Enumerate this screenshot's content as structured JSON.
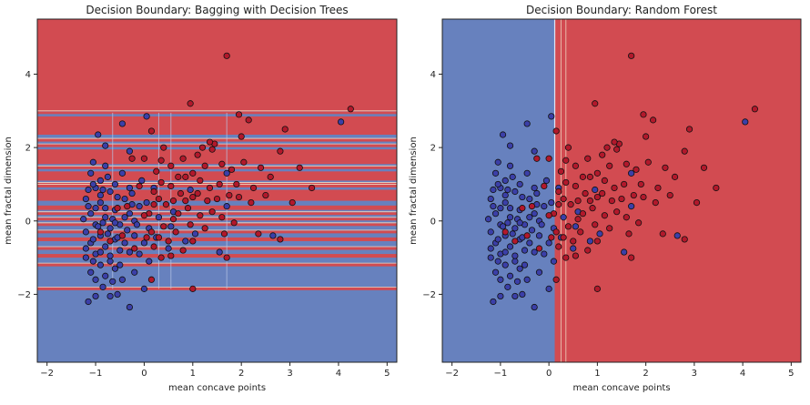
{
  "chart_data": [
    {
      "type": "scatter",
      "title": "Decision Boundary: Bagging with Decision Trees",
      "xlabel": "mean concave points",
      "ylabel": "mean fractal dimension",
      "xlim": [
        -2.2,
        5.2
      ],
      "ylim": [
        -3.85,
        5.5
      ],
      "xticks": [
        -2,
        -1,
        0,
        1,
        2,
        3,
        4,
        5
      ],
      "yticks": [
        -2,
        0,
        2,
        4
      ],
      "background_classes": [
        "red region",
        "blue region"
      ],
      "boundary": {
        "default_region": "blue",
        "red_regions": [
          {
            "axis": "y",
            "from": 3.0,
            "to": 5.5
          },
          {
            "axis": "y",
            "from": 2.35,
            "to": 2.85
          },
          {
            "axis": "y",
            "from": 1.55,
            "to": 1.95
          },
          {
            "axis": "y",
            "from": 1.1,
            "to": 1.35
          },
          {
            "axis": "y",
            "from": 0.55,
            "to": 0.85
          },
          {
            "axis": "y",
            "from": 0.3,
            "to": 0.42
          },
          {
            "axis": "y",
            "from": -0.55,
            "to": -0.45
          },
          {
            "axis": "y",
            "from": -1.0,
            "to": -0.9
          }
        ],
        "thin_red_lines_y": [
          2.95,
          2.2,
          2.05,
          1.45,
          1.0,
          0.95,
          0.2,
          0.05,
          -0.1,
          -0.3,
          -0.75,
          -1.2,
          -1.85
        ]
      }
    },
    {
      "type": "scatter",
      "title": "Decision Boundary: Random Forest",
      "xlabel": "mean concave points",
      "ylabel": "mean fractal dimension",
      "xlim": [
        -2.2,
        5.2
      ],
      "ylim": [
        -3.85,
        5.5
      ],
      "xticks": [
        -2,
        -1,
        0,
        1,
        2,
        3,
        4,
        5
      ],
      "yticks": [
        -2,
        0,
        2,
        4
      ],
      "boundary": {
        "default_region": "red",
        "blue_regions": [
          {
            "axis": "x",
            "from": -2.2,
            "to": 0.12
          }
        ],
        "thin_lines_x": [
          0.25,
          0.35
        ]
      }
    }
  ],
  "points": {
    "class_colors": {
      "benign": "#3b3fa8",
      "malignant": "#b2182b"
    },
    "benign": [
      [
        -1.1,
        1.3
      ],
      [
        -0.9,
        1.1
      ],
      [
        -0.8,
        1.5
      ],
      [
        -1.0,
        0.9
      ],
      [
        -0.7,
        0.8
      ],
      [
        -1.2,
        0.6
      ],
      [
        -0.9,
        0.5
      ],
      [
        -0.6,
        0.3
      ],
      [
        -1.1,
        0.2
      ],
      [
        -0.8,
        0.1
      ],
      [
        -1.0,
        -0.1
      ],
      [
        -1.2,
        -0.3
      ],
      [
        -0.7,
        -0.2
      ],
      [
        -0.9,
        -0.4
      ],
      [
        -1.1,
        -0.6
      ],
      [
        -0.6,
        -0.5
      ],
      [
        -0.8,
        -0.7
      ],
      [
        -1.0,
        -0.9
      ],
      [
        -0.5,
        -0.8
      ],
      [
        -1.2,
        -1.0
      ],
      [
        -0.9,
        -1.2
      ],
      [
        -0.7,
        -1.1
      ],
      [
        -1.1,
        -1.4
      ],
      [
        -0.6,
        -1.3
      ],
      [
        -0.8,
        -1.5
      ],
      [
        -1.0,
        -1.6
      ],
      [
        -1.15,
        -2.2
      ],
      [
        -0.55,
        -2.0
      ],
      [
        -0.3,
        -2.35
      ],
      [
        -0.7,
        -2.05
      ],
      [
        -0.4,
        0.6
      ],
      [
        -0.3,
        0.2
      ],
      [
        -0.5,
        -0.1
      ],
      [
        -0.2,
        -0.4
      ],
      [
        -0.4,
        -0.6
      ],
      [
        -0.3,
        0.9
      ],
      [
        -0.1,
        0.4
      ],
      [
        -0.2,
        0.0
      ],
      [
        -0.6,
        1.0
      ],
      [
        -0.45,
        1.3
      ],
      [
        -0.95,
        2.35
      ],
      [
        -0.8,
        2.05
      ],
      [
        -0.45,
        2.65
      ],
      [
        0.05,
        2.85
      ],
      [
        -0.3,
        1.9
      ],
      [
        -1.05,
        1.6
      ],
      [
        -0.65,
        0.05
      ],
      [
        -0.95,
        -0.15
      ],
      [
        -0.75,
        -0.35
      ],
      [
        -1.05,
        -0.5
      ],
      [
        -0.85,
        -0.05
      ],
      [
        -0.55,
        -0.45
      ],
      [
        -1.15,
        0.4
      ],
      [
        -0.35,
        -0.25
      ],
      [
        -0.15,
        -0.1
      ],
      [
        -0.9,
        0.7
      ],
      [
        -1.05,
        1.0
      ],
      [
        -0.75,
        1.2
      ],
      [
        -0.55,
        0.65
      ],
      [
        -0.25,
        0.75
      ],
      [
        0.05,
        0.5
      ],
      [
        0.1,
        -0.2
      ],
      [
        0.0,
        -0.6
      ],
      [
        -0.1,
        -0.9
      ],
      [
        0.1,
        -1.1
      ],
      [
        -0.05,
        1.1
      ],
      [
        0.2,
        0.9
      ],
      [
        0.3,
        0.1
      ],
      [
        -0.2,
        -1.4
      ],
      [
        -0.45,
        -1.6
      ],
      [
        -0.85,
        -1.8
      ],
      [
        -1.0,
        -2.05
      ],
      [
        -0.65,
        -1.65
      ],
      [
        0.0,
        -1.85
      ],
      [
        0.25,
        -0.45
      ],
      [
        0.5,
        -0.75
      ],
      [
        0.55,
        -0.15
      ],
      [
        0.85,
        -0.55
      ],
      [
        1.05,
        -0.35
      ],
      [
        1.7,
        1.3
      ],
      [
        4.05,
        2.7
      ],
      [
        2.65,
        -0.4
      ],
      [
        1.7,
        0.4
      ],
      [
        1.55,
        -0.85
      ],
      [
        0.6,
        0.25
      ],
      [
        0.95,
        0.85
      ],
      [
        -1.2,
        -0.75
      ],
      [
        -1.05,
        -1.1
      ],
      [
        -0.9,
        -0.85
      ],
      [
        -0.7,
        -0.95
      ],
      [
        -0.5,
        -1.2
      ],
      [
        -0.3,
        -0.85
      ],
      [
        -1.25,
        0.05
      ],
      [
        -1.0,
        0.35
      ],
      [
        -0.8,
        0.35
      ],
      [
        -0.6,
        -0.05
      ],
      [
        -0.4,
        0.1
      ],
      [
        -0.25,
        0.45
      ],
      [
        -1.15,
        0.85
      ],
      [
        -0.85,
        0.85
      ]
    ],
    "malignant": [
      [
        1.7,
        4.5
      ],
      [
        4.25,
        3.05
      ],
      [
        0.95,
        3.2
      ],
      [
        1.95,
        2.9
      ],
      [
        2.15,
        2.75
      ],
      [
        2.9,
        2.5
      ],
      [
        1.45,
        2.1
      ],
      [
        1.4,
        1.95
      ],
      [
        1.35,
        2.15
      ],
      [
        2.8,
        1.9
      ],
      [
        2.05,
        1.6
      ],
      [
        3.2,
        1.45
      ],
      [
        1.6,
        1.55
      ],
      [
        1.8,
        1.4
      ],
      [
        1.25,
        1.5
      ],
      [
        1.0,
        1.3
      ],
      [
        0.85,
        1.2
      ],
      [
        1.15,
        1.1
      ],
      [
        1.35,
        0.9
      ],
      [
        1.55,
        1.0
      ],
      [
        1.75,
        0.7
      ],
      [
        1.95,
        0.65
      ],
      [
        2.25,
        0.9
      ],
      [
        1.3,
        0.55
      ],
      [
        1.0,
        0.65
      ],
      [
        0.75,
        0.75
      ],
      [
        0.55,
        0.95
      ],
      [
        0.35,
        1.05
      ],
      [
        0.2,
        0.8
      ],
      [
        0.45,
        0.45
      ],
      [
        0.7,
        0.2
      ],
      [
        0.9,
        0.35
      ],
      [
        1.15,
        0.15
      ],
      [
        1.4,
        0.25
      ],
      [
        1.6,
        0.1
      ],
      [
        1.85,
        -0.05
      ],
      [
        2.2,
        0.5
      ],
      [
        2.6,
        1.2
      ],
      [
        3.45,
        0.9
      ],
      [
        3.05,
        0.5
      ],
      [
        2.35,
        -0.35
      ],
      [
        2.8,
        -0.5
      ],
      [
        1.65,
        -0.35
      ],
      [
        1.25,
        -0.2
      ],
      [
        0.95,
        -0.1
      ],
      [
        0.65,
        -0.3
      ],
      [
        0.4,
        -0.15
      ],
      [
        0.15,
        -0.3
      ],
      [
        0.1,
        0.2
      ],
      [
        0.3,
        0.6
      ],
      [
        0.5,
        -0.55
      ],
      [
        0.8,
        -0.8
      ],
      [
        1.0,
        -0.55
      ],
      [
        0.35,
        -1.0
      ],
      [
        0.2,
        -0.7
      ],
      [
        0.05,
        -0.45
      ],
      [
        0.55,
        -0.95
      ],
      [
        1.7,
        -1.0
      ],
      [
        1.0,
        -1.85
      ],
      [
        0.15,
        -1.6
      ],
      [
        0.35,
        1.65
      ],
      [
        0.55,
        1.5
      ],
      [
        0.25,
        1.35
      ],
      [
        0.8,
        1.7
      ],
      [
        1.1,
        1.8
      ],
      [
        0.4,
        2.0
      ],
      [
        0.15,
        2.45
      ],
      [
        0.6,
        0.05
      ],
      [
        0.85,
        0.55
      ],
      [
        1.1,
        0.75
      ],
      [
        1.5,
        0.6
      ],
      [
        -0.25,
        1.7
      ],
      [
        -0.55,
        0.35
      ],
      [
        -0.2,
        -0.75
      ],
      [
        -0.7,
        -0.55
      ],
      [
        -0.9,
        -0.3
      ],
      [
        -0.35,
        0.4
      ],
      [
        -0.45,
        -0.4
      ],
      [
        0.0,
        1.7
      ],
      [
        0.0,
        0.15
      ],
      [
        2.0,
        2.3
      ],
      [
        1.2,
        2.0
      ],
      [
        0.7,
        1.2
      ],
      [
        1.9,
        1.0
      ],
      [
        2.4,
        1.45
      ],
      [
        2.5,
        0.7
      ],
      [
        0.3,
        -0.45
      ],
      [
        0.6,
        0.55
      ],
      [
        -0.1,
        0.95
      ],
      [
        0.2,
        0.45
      ]
    ]
  }
}
